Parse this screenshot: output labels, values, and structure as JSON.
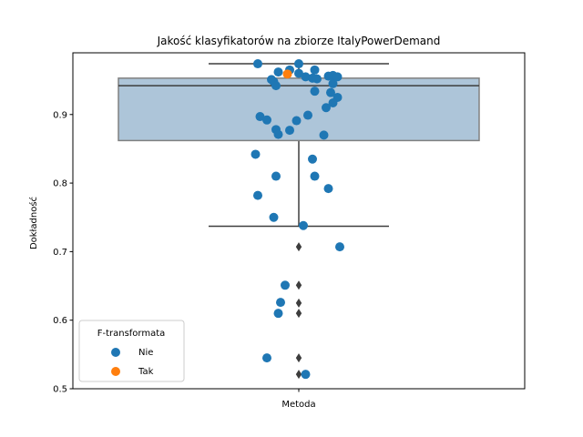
{
  "chart_data": {
    "type": "box-with-strip",
    "title": "Jakość klasyfikatorów na zbiorze ItalyPowerDemand",
    "xlabel": "",
    "ylabel": "Dokładność",
    "categories": [
      "Metoda"
    ],
    "ylim": [
      0.5,
      0.99
    ],
    "yticks": [
      0.5,
      0.6,
      0.7,
      0.8,
      0.9
    ],
    "ytick_labels": [
      "0.5",
      "0.6",
      "0.7",
      "0.8",
      "0.9"
    ],
    "grid": false,
    "legend": {
      "title": "F-transformata",
      "placement": "lower-left",
      "entries": [
        "Nie",
        "Tak"
      ]
    },
    "box": {
      "whisker_low": 0.737,
      "q1": 0.862,
      "median": 0.942,
      "q3": 0.953,
      "whisker_high": 0.974,
      "fill": "#adc5d9",
      "edge": "#808080"
    },
    "outliers": [
      0.707,
      0.651,
      0.625,
      0.61,
      0.545,
      0.521
    ],
    "series": [
      {
        "name": "Nie",
        "color": "#1f77b4",
        "points": [
          {
            "x": -0.18,
            "y": 0.974
          },
          {
            "x": -0.09,
            "y": 0.962
          },
          {
            "x": -0.04,
            "y": 0.965
          },
          {
            "x": 0.0,
            "y": 0.974
          },
          {
            "x": 0.0,
            "y": 0.96
          },
          {
            "x": 0.07,
            "y": 0.965
          },
          {
            "x": -0.12,
            "y": 0.951
          },
          {
            "x": -0.11,
            "y": 0.948
          },
          {
            "x": -0.1,
            "y": 0.942
          },
          {
            "x": 0.03,
            "y": 0.955
          },
          {
            "x": 0.06,
            "y": 0.953
          },
          {
            "x": 0.08,
            "y": 0.952
          },
          {
            "x": 0.13,
            "y": 0.956
          },
          {
            "x": 0.15,
            "y": 0.957
          },
          {
            "x": 0.17,
            "y": 0.955
          },
          {
            "x": 0.15,
            "y": 0.945
          },
          {
            "x": 0.07,
            "y": 0.934
          },
          {
            "x": 0.14,
            "y": 0.932
          },
          {
            "x": 0.17,
            "y": 0.925
          },
          {
            "x": 0.15,
            "y": 0.917
          },
          {
            "x": 0.12,
            "y": 0.91
          },
          {
            "x": -0.17,
            "y": 0.897
          },
          {
            "x": -0.14,
            "y": 0.892
          },
          {
            "x": -0.01,
            "y": 0.891
          },
          {
            "x": 0.04,
            "y": 0.899
          },
          {
            "x": -0.1,
            "y": 0.878
          },
          {
            "x": -0.04,
            "y": 0.877
          },
          {
            "x": -0.09,
            "y": 0.871
          },
          {
            "x": 0.11,
            "y": 0.87
          },
          {
            "x": -0.19,
            "y": 0.842
          },
          {
            "x": 0.06,
            "y": 0.835
          },
          {
            "x": -0.1,
            "y": 0.81
          },
          {
            "x": 0.07,
            "y": 0.81
          },
          {
            "x": 0.13,
            "y": 0.792
          },
          {
            "x": -0.18,
            "y": 0.782
          },
          {
            "x": -0.11,
            "y": 0.75
          },
          {
            "x": 0.02,
            "y": 0.738
          },
          {
            "x": 0.18,
            "y": 0.707
          },
          {
            "x": -0.06,
            "y": 0.651
          },
          {
            "x": -0.08,
            "y": 0.626
          },
          {
            "x": -0.09,
            "y": 0.61
          },
          {
            "x": -0.14,
            "y": 0.545
          },
          {
            "x": 0.03,
            "y": 0.521
          }
        ]
      },
      {
        "name": "Tak",
        "color": "#ff7f0e",
        "points": [
          {
            "x": -0.05,
            "y": 0.959
          }
        ]
      }
    ]
  }
}
